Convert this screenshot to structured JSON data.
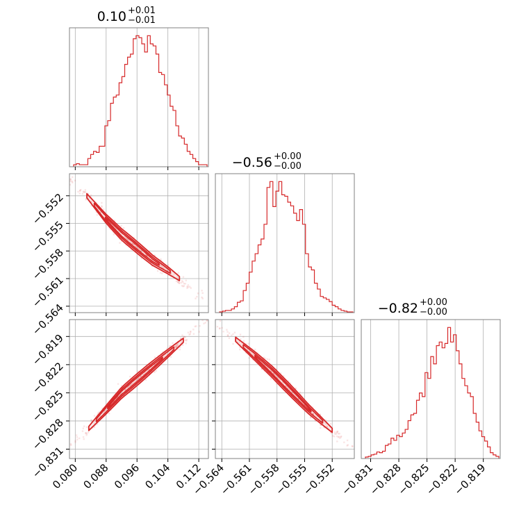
{
  "chart_data": {
    "type": "corner",
    "color": "#d62728",
    "grid": true,
    "parameters": [
      {
        "id": "p0",
        "median": "0.10",
        "upper": "+0.01",
        "lower": "−0.01",
        "range": [
          0.0785,
          0.1145
        ],
        "ticks": [
          0.08,
          0.088,
          0.096,
          0.104,
          0.112
        ],
        "tick_labels": [
          "0.080",
          "0.088",
          "0.096",
          "0.104",
          "0.112"
        ]
      },
      {
        "id": "p1",
        "median": "−0.56",
        "upper": "+0.00",
        "lower": "−0.00",
        "range": [
          -0.5647,
          -0.5496
        ],
        "ticks": [
          -0.564,
          -0.561,
          -0.558,
          -0.555,
          -0.552
        ],
        "tick_labels": [
          "−0.564",
          "−0.561",
          "−0.558",
          "−0.555",
          "−0.552"
        ]
      },
      {
        "id": "p2",
        "median": "−0.82",
        "upper": "+0.00",
        "lower": "−0.00",
        "range": [
          -0.832,
          -0.8172
        ],
        "ticks": [
          -0.831,
          -0.828,
          -0.825,
          -0.822,
          -0.819
        ],
        "tick_labels": [
          "−0.831",
          "−0.828",
          "−0.825",
          "−0.822",
          "−0.819"
        ]
      }
    ],
    "histograms": [
      {
        "param": "p0",
        "values": [
          2,
          3,
          2,
          2,
          2,
          8,
          12,
          15,
          14,
          20,
          20,
          40,
          45,
          62,
          68,
          70,
          82,
          88,
          100,
          107,
          110,
          125,
          128,
          126,
          120,
          112,
          128,
          120,
          118,
          110,
          92,
          90,
          80,
          70,
          59,
          55,
          40,
          30,
          28,
          22,
          15,
          12,
          8,
          5,
          2,
          2,
          2
        ]
      },
      {
        "param": "p1",
        "values": [
          1,
          2,
          3,
          3,
          5,
          8,
          14,
          16,
          30,
          40,
          55,
          70,
          80,
          92,
          100,
          120,
          170,
          178,
          144,
          165,
          178,
          160,
          158,
          150,
          145,
          135,
          125,
          140,
          120,
          80,
          62,
          58,
          40,
          32,
          22,
          20,
          18,
          15,
          10,
          8,
          5,
          3,
          2,
          1,
          1
        ]
      },
      {
        "param": "p2",
        "values": [
          2,
          3,
          5,
          6,
          9,
          8,
          10,
          18,
          20,
          28,
          25,
          32,
          30,
          35,
          40,
          52,
          60,
          62,
          80,
          90,
          85,
          118,
          110,
          140,
          130,
          155,
          160,
          152,
          158,
          180,
          160,
          170,
          148,
          130,
          110,
          100,
          90,
          85,
          62,
          50,
          38,
          30,
          24,
          16,
          8,
          5,
          3
        ]
      }
    ],
    "joint_2d": [
      {
        "x": "p0",
        "y": "p1",
        "correlation": "negative",
        "contour_levels": 3,
        "ridge": [
          [
            0.083,
            -0.552
          ],
          [
            0.088,
            -0.5545
          ],
          [
            0.092,
            -0.5562
          ],
          [
            0.096,
            -0.5576
          ],
          [
            0.1,
            -0.559
          ],
          [
            0.104,
            -0.5601
          ],
          [
            0.107,
            -0.561
          ]
        ]
      },
      {
        "x": "p0",
        "y": "p2",
        "correlation": "positive",
        "contour_levels": 3,
        "ridge": [
          [
            0.0835,
            -0.8288
          ],
          [
            0.088,
            -0.8268
          ],
          [
            0.092,
            -0.825
          ],
          [
            0.096,
            -0.8236
          ],
          [
            0.1,
            -0.8222
          ],
          [
            0.104,
            -0.8208
          ],
          [
            0.108,
            -0.8194
          ]
        ]
      },
      {
        "x": "p1",
        "y": "p2",
        "correlation": "negative",
        "contour_levels": 3,
        "ridge": [
          [
            -0.5625,
            -0.8193
          ],
          [
            -0.5605,
            -0.821
          ],
          [
            -0.5585,
            -0.8228
          ],
          [
            -0.5565,
            -0.8248
          ],
          [
            -0.5545,
            -0.8268
          ],
          [
            -0.552,
            -0.829
          ]
        ]
      }
    ]
  }
}
